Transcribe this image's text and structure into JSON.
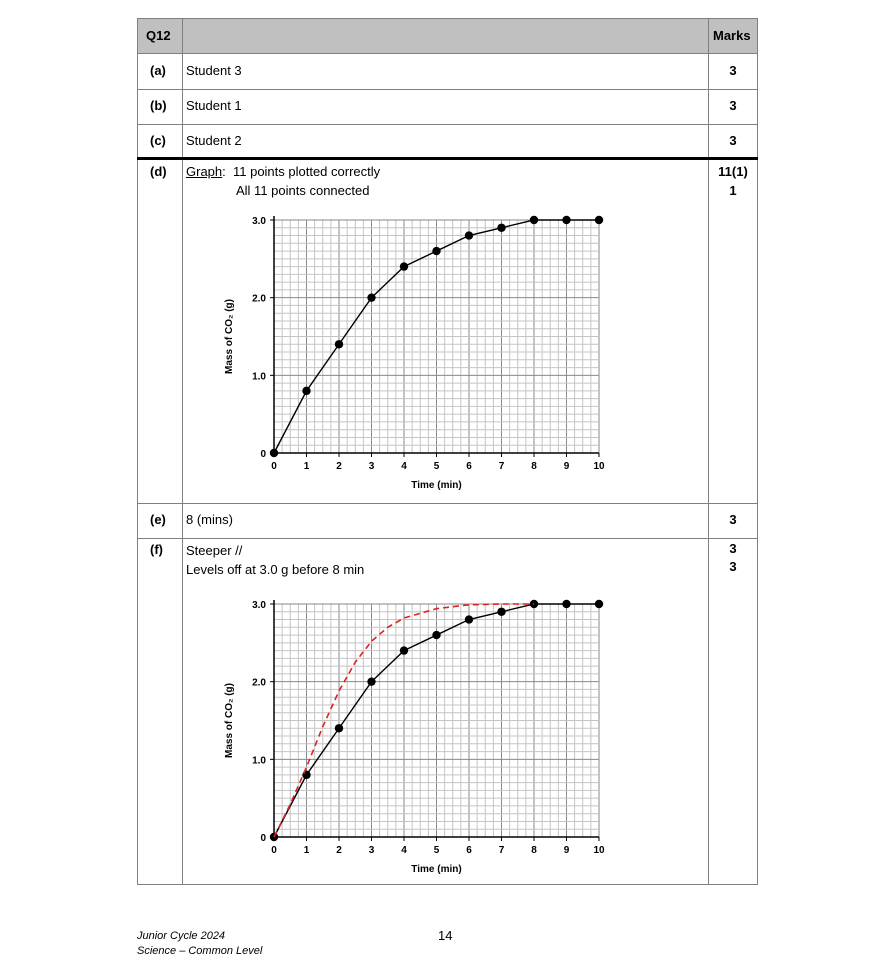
{
  "table": {
    "header": {
      "question": "Q12",
      "marks_label": "Marks"
    },
    "rows": [
      {
        "part": "(a)",
        "text": "Student 3",
        "mark": "3"
      },
      {
        "part": "(b)",
        "text": "Student 1",
        "mark": "3"
      },
      {
        "part": "(c)",
        "text": "Student 2",
        "mark": "3"
      },
      {
        "part": "(d)",
        "text_graph_label": "Graph",
        "text_line1": ":  11 points plotted correctly",
        "text_line2": "All 11 points connected",
        "mark_line1": "11(1)",
        "mark_line2": "1"
      },
      {
        "part": "(e)",
        "text": "8 (mins)",
        "mark": "3"
      },
      {
        "part": "(f)",
        "text_line1": "Steeper //",
        "text_line2": "Levels off at 3.0 g before 8 min",
        "mark_line1": "3",
        "mark_line2": "3"
      }
    ]
  },
  "chart_data": [
    {
      "type": "line",
      "part": "(d)",
      "xlabel": "Time (min)",
      "ylabel": "Mass of CO₂ (g)",
      "xlim": [
        0,
        10
      ],
      "ylim": [
        0,
        3.0
      ],
      "x_ticks": [
        "0",
        "1",
        "2",
        "3",
        "4",
        "5",
        "6",
        "7",
        "8",
        "9",
        "10"
      ],
      "y_ticks": [
        "0",
        "1.0",
        "2.0",
        "3.0"
      ],
      "grid": true,
      "series": [
        {
          "color": "#000000",
          "style": "solid-with-markers",
          "x": [
            0,
            1,
            2,
            3,
            4,
            5,
            6,
            7,
            8,
            9,
            10
          ],
          "y": [
            0,
            0.8,
            1.4,
            2.0,
            2.4,
            2.6,
            2.8,
            2.9,
            3.0,
            3.0,
            3.0
          ]
        }
      ]
    },
    {
      "type": "line",
      "part": "(f)",
      "xlabel": "Time (min)",
      "ylabel": "Mass of CO₂ (g)",
      "xlim": [
        0,
        10
      ],
      "ylim": [
        0,
        3.0
      ],
      "x_ticks": [
        "0",
        "1",
        "2",
        "3",
        "4",
        "5",
        "6",
        "7",
        "8",
        "9",
        "10"
      ],
      "y_ticks": [
        "0",
        "1.0",
        "2.0",
        "3.0"
      ],
      "grid": true,
      "series": [
        {
          "color": "#000000",
          "style": "solid-with-markers",
          "x": [
            0,
            1,
            2,
            3,
            4,
            5,
            6,
            7,
            8,
            9,
            10
          ],
          "y": [
            0,
            0.8,
            1.4,
            2.0,
            2.4,
            2.6,
            2.8,
            2.9,
            3.0,
            3.0,
            3.0
          ]
        },
        {
          "color": "#e02020",
          "style": "dashed",
          "x": [
            0,
            0.5,
            1,
            1.5,
            2,
            2.5,
            3,
            3.5,
            4,
            5,
            6,
            7,
            8
          ],
          "y": [
            0,
            0.42,
            0.9,
            1.42,
            1.88,
            2.25,
            2.52,
            2.7,
            2.82,
            2.94,
            2.99,
            3.0,
            3.0
          ]
        }
      ]
    }
  ],
  "footer": {
    "line1": "Junior Cycle 2024",
    "line2": "Science – Common Level",
    "page_number": "14"
  }
}
